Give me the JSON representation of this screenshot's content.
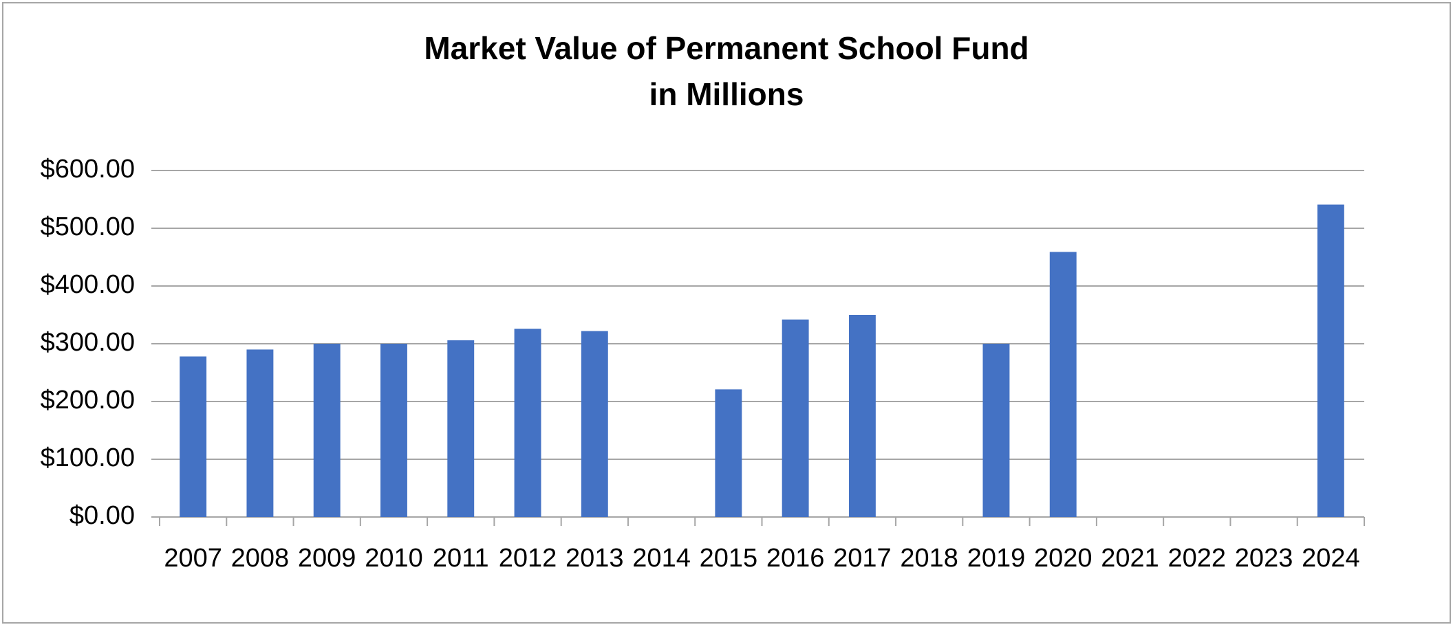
{
  "chart_data": {
    "type": "bar",
    "title": [
      "Market Value of Permanent School Fund",
      "in Millions"
    ],
    "categories": [
      "2007",
      "2008",
      "2009",
      "2010",
      "2011",
      "2012",
      "2013",
      "2014",
      "2015",
      "2016",
      "2017",
      "2018",
      "2019",
      "2020",
      "2021",
      "2022",
      "2023",
      "2024"
    ],
    "values": [
      278,
      290,
      300,
      300,
      306,
      326,
      322,
      null,
      221,
      342,
      350,
      null,
      300,
      459,
      null,
      null,
      null,
      541
    ],
    "color": "#4472c4",
    "ylim": [
      0,
      600
    ],
    "yticks": [
      {
        "value": 0,
        "label": "$0.00"
      },
      {
        "value": 100,
        "label": "$100.00"
      },
      {
        "value": 200,
        "label": "$200.00"
      },
      {
        "value": 300,
        "label": "$300.00"
      },
      {
        "value": 400,
        "label": "$400.00"
      },
      {
        "value": 500,
        "label": "$500.00"
      },
      {
        "value": 600,
        "label": "$600.00"
      }
    ],
    "grid": true
  }
}
